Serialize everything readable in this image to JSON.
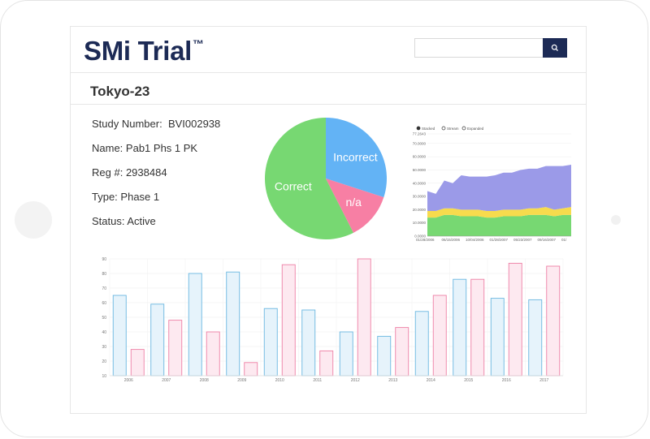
{
  "brand": {
    "name": "SMi Trial",
    "tm": "™"
  },
  "search": {
    "placeholder": "",
    "button_icon": "search-icon"
  },
  "page": {
    "title": "Tokyo-23"
  },
  "study": {
    "number_label": "Study Number:",
    "number": "BVI002938",
    "name_label": "Name:",
    "name": "Pab1 Phs 1 PK",
    "reg_label": "Reg #:",
    "reg": "2938484",
    "type_label": "Type:",
    "type": "Phase 1",
    "status_label": "Status:",
    "status": "Active"
  },
  "colors": {
    "brand": "#1c2a55",
    "correct": "#77d872",
    "incorrect": "#63b3f5",
    "na": "#f77fa4",
    "area_top": "#9b9ae8",
    "area_mid": "#f7db4d",
    "area_low": "#77d872",
    "bar_blue": "#6ab7e0",
    "bar_pink": "#ee7fa5"
  },
  "chart_data": [
    {
      "type": "pie",
      "labels": [
        "Correct",
        "Incorrect",
        "n/a"
      ],
      "values": [
        57.5,
        30,
        12.5
      ]
    },
    {
      "type": "area",
      "legend": [
        "Stacked",
        "Stream",
        "Expanded"
      ],
      "ylim": [
        0,
        77.2643
      ],
      "yticks": [
        "77.2643",
        "70.0000",
        "60.0000",
        "50.0000",
        "40.0000",
        "30.0000",
        "20.0000",
        "10.0000",
        "0.0000"
      ],
      "xticks": [
        "01/28/2006",
        "06/15/2006",
        "10/04/2006",
        "01/28/2007",
        "05/23/2007",
        "09/16/2007",
        "01/"
      ],
      "series": [
        {
          "values": [
            14,
            14,
            16,
            16,
            15,
            15,
            15,
            14,
            14,
            15,
            15,
            15,
            16,
            16,
            16,
            15,
            16,
            16
          ]
        },
        {
          "values": [
            5,
            5,
            5,
            5,
            5,
            5,
            5,
            5,
            5,
            5,
            5,
            5,
            5,
            5,
            6,
            5,
            5,
            6
          ]
        },
        {
          "values": [
            15,
            13,
            21,
            19,
            26,
            25,
            25,
            26,
            27,
            28,
            28,
            30,
            30,
            30,
            31,
            33,
            32,
            32
          ]
        }
      ]
    },
    {
      "type": "bar",
      "categories": [
        "2006",
        "2007",
        "2008",
        "2009",
        "2010",
        "2011",
        "2012",
        "2013",
        "2014",
        "2015",
        "2016",
        "2017"
      ],
      "ylim": [
        10,
        90
      ],
      "yticks": [
        "90",
        "80",
        "70",
        "60",
        "50",
        "40",
        "30",
        "20",
        "10"
      ],
      "series": [
        {
          "values": [
            65,
            59,
            80,
            81,
            56,
            55,
            40,
            37,
            54,
            76,
            63,
            62
          ]
        },
        {
          "values": [
            28,
            48,
            40,
            19,
            86,
            27,
            90,
            43,
            65,
            76,
            87,
            85
          ]
        }
      ]
    }
  ]
}
